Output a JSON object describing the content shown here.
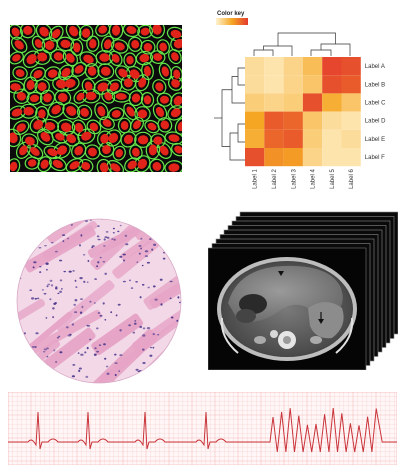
{
  "colors": {
    "cell_nucleus": "#e2231a",
    "cell_membrane": "#66e64a",
    "cell_background": "#0b0b0b",
    "heat_low": "#fff3cf",
    "heat_mid": "#f5a623",
    "heat_high": "#e43b2e",
    "tissue_pink": "#e6a4c6",
    "tissue_nuclei": "#4e3a8e",
    "ecg_grid": "#f4bcbc",
    "ecg_trace": "#c8343a"
  },
  "heatmap": {
    "colorkey_title": "Color key",
    "row_labels": [
      "Label A",
      "Label B",
      "Label C",
      "Label D",
      "Label E",
      "Label F"
    ],
    "col_labels": [
      "Label 1",
      "Label 2",
      "Label 3",
      "Label 4",
      "Label 5",
      "Label 6"
    ],
    "matrix": [
      [
        0.15,
        0.1,
        0.2,
        0.35,
        0.95,
        0.9
      ],
      [
        0.15,
        0.1,
        0.2,
        0.3,
        0.9,
        0.85
      ],
      [
        0.25,
        0.2,
        0.25,
        0.9,
        0.45,
        0.3
      ],
      [
        0.5,
        0.85,
        0.8,
        0.3,
        0.15,
        0.1
      ],
      [
        0.45,
        0.8,
        0.85,
        0.25,
        0.1,
        0.15
      ],
      [
        0.9,
        0.6,
        0.55,
        0.2,
        0.1,
        0.1
      ]
    ]
  },
  "ct": {
    "slice_count": 8
  }
}
